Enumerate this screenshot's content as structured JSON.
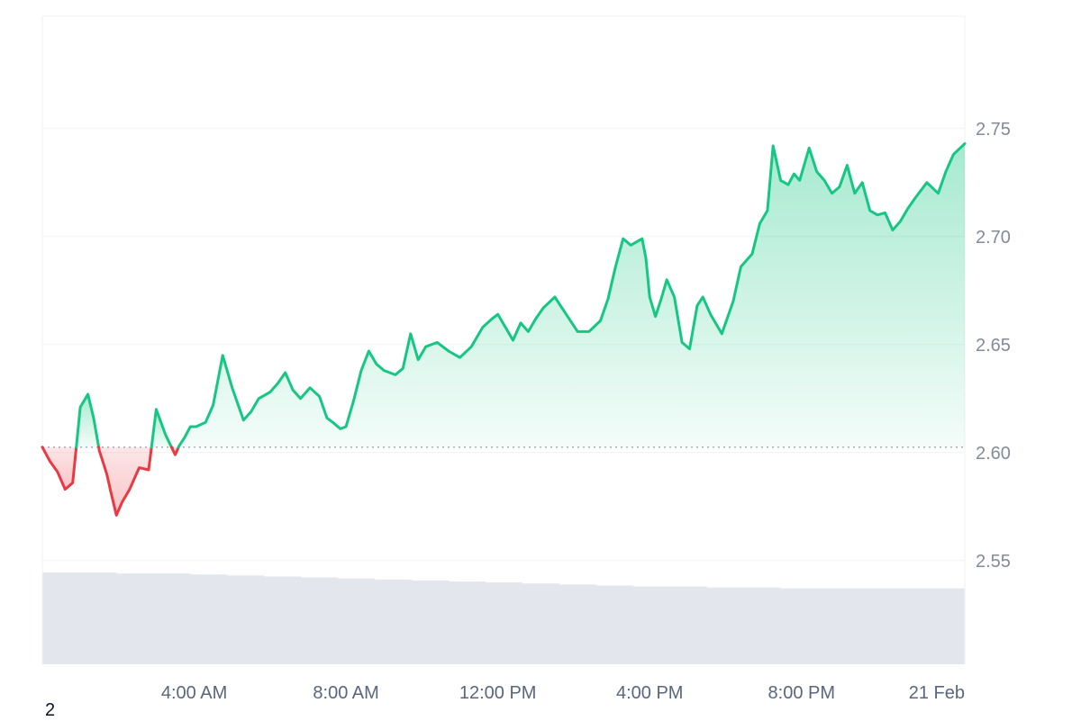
{
  "chart_data": {
    "type": "line",
    "title": "",
    "xlabel": "",
    "ylabel": "",
    "baseline": 2.6025,
    "ylim": [
      2.502,
      2.802
    ],
    "x_tick_labels": [
      "4:00 AM",
      "8:00 AM",
      "12:00 PM",
      "4:00 PM",
      "8:00 PM",
      "21 Feb"
    ],
    "y_tick_labels": [
      "2.55",
      "2.60",
      "2.65",
      "2.70",
      "2.75"
    ],
    "y_ticks": [
      2.55,
      2.6,
      2.65,
      2.7,
      2.75
    ],
    "x_range_hours": [
      0,
      24.3
    ],
    "grid": true,
    "colors": {
      "up": "#16c784",
      "down": "#ea3943",
      "up_fill": "#16c784",
      "down_fill": "#ea3943",
      "volume": "#e3e6ec",
      "grid": "#eff2f5"
    },
    "series": [
      {
        "x": [
          0.0,
          0.2,
          0.4,
          0.5,
          0.6,
          0.8,
          1.0,
          1.2,
          1.35,
          1.5,
          1.7,
          1.8,
          1.95,
          2.1,
          2.3,
          2.55,
          2.8,
          3.0,
          3.25,
          3.5,
          3.6,
          3.75,
          3.9,
          4.05,
          4.3,
          4.5,
          4.75,
          5.0,
          5.1,
          5.3,
          5.5,
          5.7,
          6.0,
          6.2,
          6.4,
          6.6,
          6.8,
          7.05,
          7.3,
          7.5,
          7.65,
          7.85,
          8.0,
          8.2,
          8.4,
          8.6,
          8.8,
          9.0,
          9.3,
          9.5,
          9.7,
          9.9,
          10.1,
          10.4,
          10.7,
          11.0,
          11.3,
          11.6,
          11.85,
          12.0,
          12.2,
          12.4,
          12.6,
          12.8,
          13.0,
          13.2,
          13.5,
          13.8,
          14.1,
          14.4,
          14.7,
          14.9,
          15.1,
          15.3,
          15.5,
          15.8,
          15.9,
          16.0,
          16.15,
          16.3,
          16.45,
          16.65,
          16.85,
          17.05,
          17.25,
          17.4,
          17.6,
          17.9,
          18.2,
          18.4,
          18.7,
          18.9,
          19.1,
          19.25,
          19.45,
          19.65,
          19.8,
          19.95,
          20.2,
          20.4,
          20.6,
          20.8,
          21.0,
          21.2,
          21.4,
          21.6,
          21.8,
          22.0,
          22.2,
          22.4,
          22.6,
          22.8,
          23.0,
          23.3,
          23.6,
          23.8,
          24.0,
          24.3
        ],
        "values": [
          2.6025,
          2.596,
          2.591,
          2.587,
          2.583,
          2.586,
          2.621,
          2.627,
          2.616,
          2.601,
          2.59,
          2.582,
          2.571,
          2.577,
          2.583,
          2.593,
          2.592,
          2.62,
          2.608,
          2.599,
          2.603,
          2.607,
          2.612,
          2.612,
          2.614,
          2.622,
          2.645,
          2.63,
          2.625,
          2.615,
          2.619,
          2.625,
          2.628,
          2.632,
          2.637,
          2.629,
          2.625,
          2.63,
          2.626,
          2.616,
          2.614,
          2.611,
          2.612,
          2.624,
          2.638,
          2.647,
          2.641,
          2.638,
          2.636,
          2.639,
          2.655,
          2.643,
          2.649,
          2.651,
          2.647,
          2.644,
          2.649,
          2.658,
          2.662,
          2.664,
          2.658,
          2.652,
          2.66,
          2.656,
          2.662,
          2.667,
          2.672,
          2.664,
          2.656,
          2.656,
          2.661,
          2.671,
          2.686,
          2.699,
          2.696,
          2.699,
          2.69,
          2.672,
          2.663,
          2.671,
          2.68,
          2.672,
          2.651,
          2.648,
          2.668,
          2.672,
          2.664,
          2.655,
          2.67,
          2.686,
          2.692,
          2.706,
          2.712,
          2.742,
          2.726,
          2.724,
          2.729,
          2.726,
          2.741,
          2.73,
          2.726,
          2.72,
          2.723,
          2.733,
          2.72,
          2.725,
          2.712,
          2.71,
          2.711,
          2.703,
          2.707,
          2.713,
          2.718,
          2.725,
          2.72,
          2.73,
          2.738,
          2.743
        ]
      }
    ],
    "volume": [
      0.92,
      0.92,
      0.91,
      0.91,
      0.9,
      0.89,
      0.88,
      0.87,
      0.86,
      0.85,
      0.84,
      0.83,
      0.82,
      0.81,
      0.8,
      0.79,
      0.78,
      0.78,
      0.77,
      0.77,
      0.76,
      0.76,
      0.76,
      0.76,
      0.76
    ]
  },
  "corner_label": "2"
}
